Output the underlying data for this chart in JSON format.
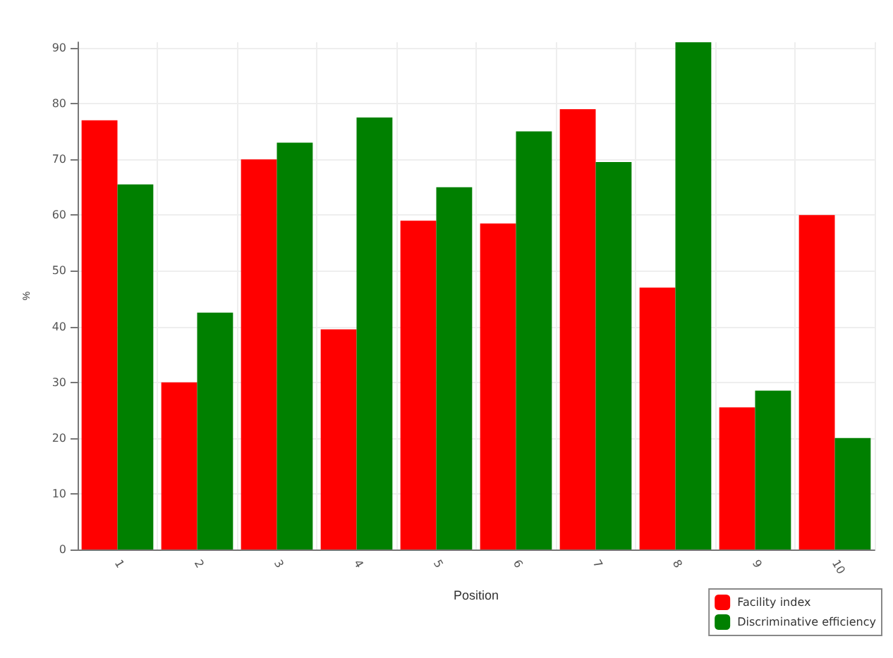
{
  "chart_data": {
    "type": "bar",
    "xlabel": "Position",
    "ylabel": "%",
    "categories": [
      "1",
      "2",
      "3",
      "4",
      "5",
      "6",
      "7",
      "8",
      "9",
      "10"
    ],
    "series": [
      {
        "name": "Facility index",
        "color": "#ff0000",
        "values": [
          77,
          30,
          70,
          39.5,
          59,
          58.5,
          79,
          47,
          25.5,
          60
        ]
      },
      {
        "name": "Discriminative efficiency",
        "color": "#008000",
        "values": [
          65.5,
          42.5,
          73,
          77.5,
          65,
          75,
          69.5,
          91,
          28.5,
          20
        ]
      }
    ],
    "ylim": [
      0,
      91
    ],
    "yticks": [
      0,
      10,
      20,
      30,
      40,
      50,
      60,
      70,
      80,
      90
    ],
    "grid": true,
    "legend": "bottom right"
  }
}
